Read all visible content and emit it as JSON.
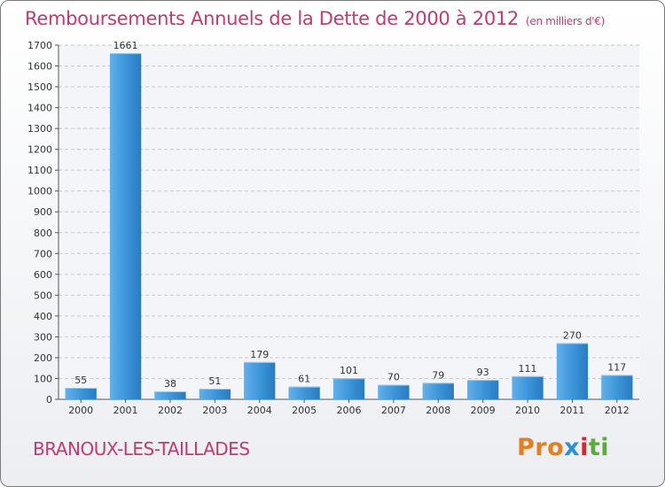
{
  "chart_data": {
    "type": "bar",
    "title": "Remboursements Annuels de la Dette de 2000 à 2012",
    "subtitle": "(en milliers d'€)",
    "categories": [
      "2000",
      "2001",
      "2002",
      "2003",
      "2004",
      "2005",
      "2006",
      "2007",
      "2008",
      "2009",
      "2010",
      "2011",
      "2012"
    ],
    "values": [
      55,
      1661,
      38,
      51,
      179,
      61,
      101,
      70,
      79,
      93,
      111,
      270,
      117
    ],
    "ylim": [
      0,
      1700
    ],
    "yticks": [
      0,
      100,
      200,
      300,
      400,
      500,
      600,
      700,
      800,
      900,
      1000,
      1100,
      1200,
      1300,
      1400,
      1500,
      1600,
      1700
    ],
    "xlabel": "",
    "ylabel": "",
    "grid": true,
    "bar_color": "#3a93d8",
    "bar_color_dark": "#2a7bc0",
    "bar_color_light": "#62b0ea"
  },
  "footer": {
    "commune": "BRANOUX-LES-TAILLADES",
    "logo": {
      "p1": "Pro",
      "p2": "x",
      "p3": "i",
      "p4": "ti"
    }
  },
  "colors": {
    "accent": "#c13a73"
  }
}
